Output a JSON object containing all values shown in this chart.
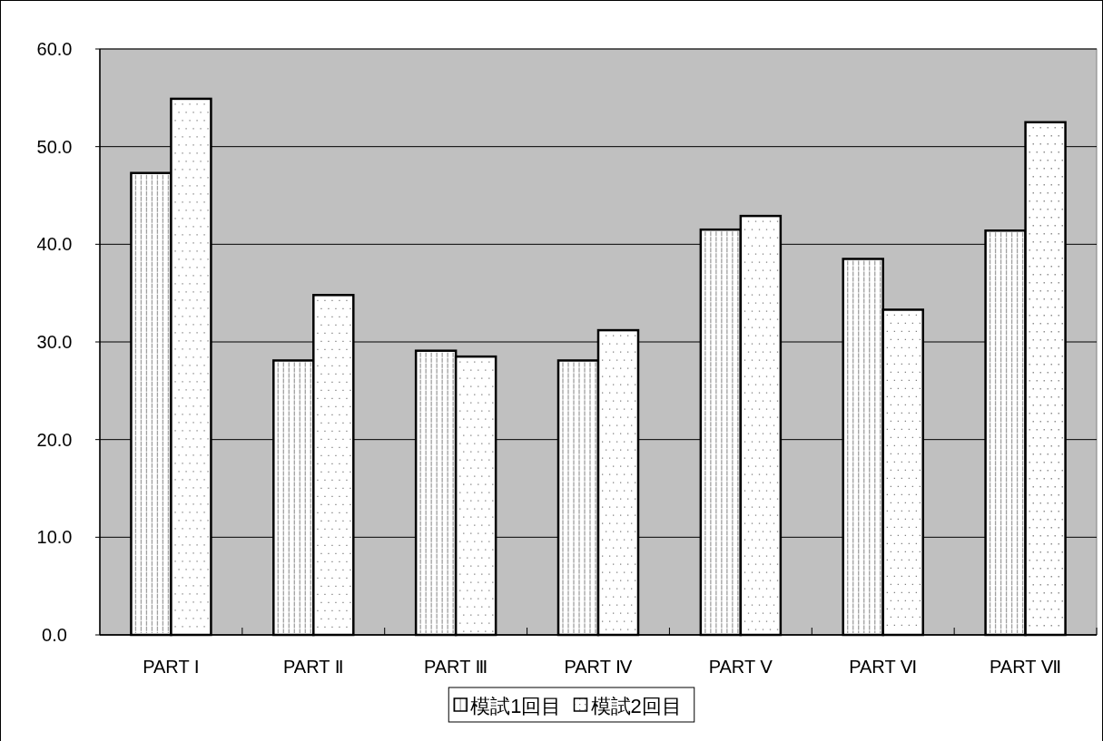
{
  "chart_data": {
    "type": "bar",
    "categories": [
      "PART Ⅰ",
      "PART Ⅱ",
      "PART Ⅲ",
      "PART Ⅳ",
      "PART Ⅴ",
      "PART Ⅵ",
      "PART Ⅶ"
    ],
    "series": [
      {
        "name": "模試1回目",
        "color": "#ffffff",
        "values": [
          47.3,
          28.1,
          29.1,
          28.1,
          41.5,
          38.5,
          41.4
        ]
      },
      {
        "name": "模試2回目",
        "color": "#ffffff",
        "values": [
          54.9,
          34.8,
          28.5,
          31.2,
          42.9,
          33.3,
          52.5
        ]
      }
    ],
    "ylim": [
      0,
      60
    ],
    "yticks": [
      {
        "value": 0,
        "label": "0.0"
      },
      {
        "value": 10,
        "label": "10.0"
      },
      {
        "value": 20,
        "label": "20.0"
      },
      {
        "value": 30,
        "label": "30.0"
      },
      {
        "value": 40,
        "label": "40.0"
      },
      {
        "value": 50,
        "label": "50.0"
      },
      {
        "value": 60,
        "label": "60.0"
      }
    ],
    "grid": "y",
    "legend": "bottom"
  }
}
